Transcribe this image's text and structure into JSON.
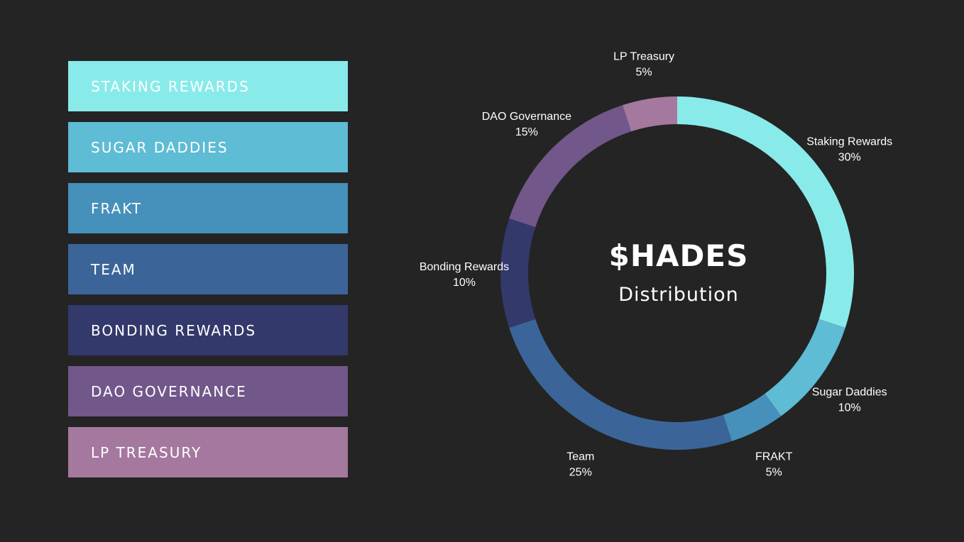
{
  "chart_data": {
    "type": "pie",
    "title": "$HADES",
    "subtitle": "Distribution",
    "slices": [
      {
        "legend": "STAKING REWARDS",
        "label": "Staking Rewards",
        "value": 30,
        "value_label": "30%",
        "color": "#88ebe9"
      },
      {
        "legend": "SUGAR DADDIES",
        "label": "Sugar Daddies",
        "value": 10,
        "value_label": "10%",
        "color": "#5ebcd5"
      },
      {
        "legend": "FRAKT",
        "label": "FRAKT",
        "value": 5,
        "value_label": "5%",
        "color": "#4591bb"
      },
      {
        "legend": "TEAM",
        "label": "Team",
        "value": 25,
        "value_label": "25%",
        "color": "#3b6598"
      },
      {
        "legend": "BONDING REWARDS",
        "label": "Bonding Rewards",
        "value": 10,
        "value_label": "10%",
        "color": "#33396b"
      },
      {
        "legend": "DAO GOVERNANCE",
        "label": "DAO Governance",
        "value": 15,
        "value_label": "15%",
        "color": "#72578a"
      },
      {
        "legend": "LP TREASURY",
        "label": "LP Treasury",
        "value": 5,
        "value_label": "5%",
        "color": "#a5789f"
      }
    ]
  }
}
